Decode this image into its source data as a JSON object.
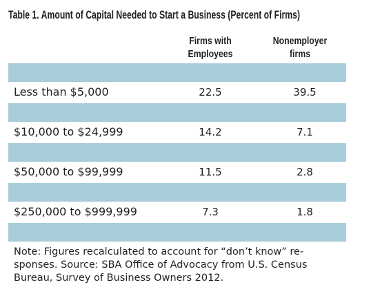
{
  "title": "Table 1. Amount of Capital Needed to Start a Business (Percent of Firms)",
  "table": {
    "columns": [
      [
        "Firms with",
        "Employees"
      ],
      [
        "Nonemployer",
        "firms"
      ]
    ],
    "rows": [
      [
        "Less than $5,000",
        "22.5",
        "39.5"
      ],
      [
        "$10,000 to $24,999",
        "14.2",
        "7.1"
      ],
      [
        "$50,000 to $99,999",
        "11.5",
        "2.8"
      ],
      [
        "$250,000 to $999,999",
        "7.3",
        "1.8"
      ]
    ]
  },
  "note": [
    "Note: Figures recalculated to account for “don’t know” re-",
    "sponses. Source: SBA Office of Advocacy from U.S. Census",
    "Bureau, Survey of Business Owners 2012."
  ]
}
